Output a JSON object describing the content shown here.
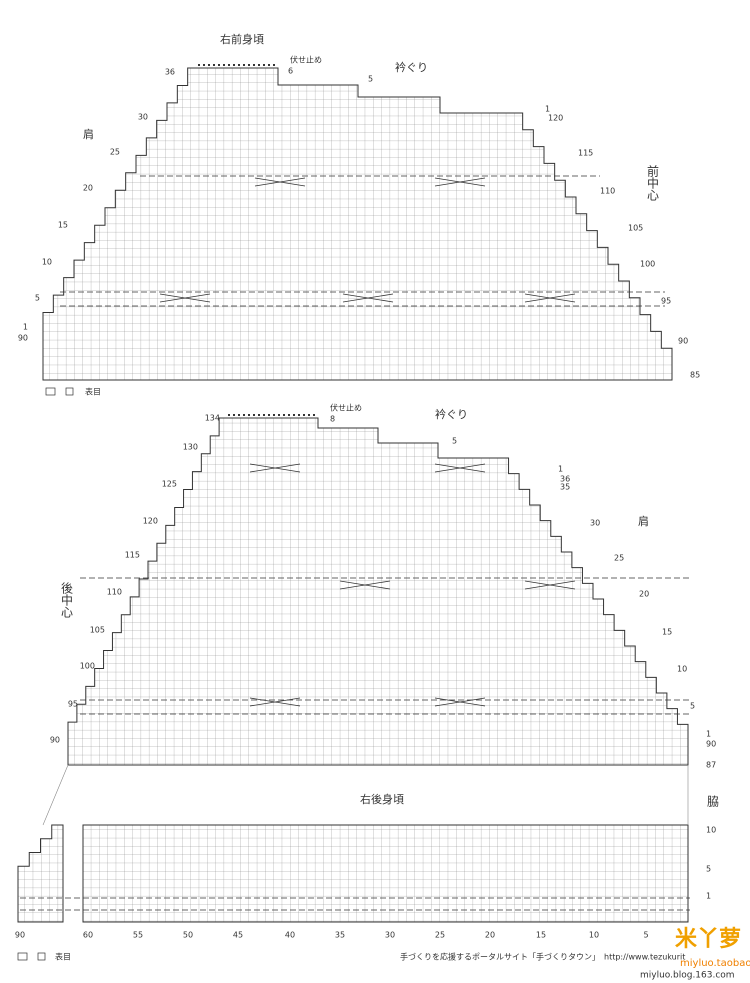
{
  "front": {
    "title": "右前身頃",
    "neckline": "衿ぐり",
    "shoulder": "肩",
    "center": "前中心",
    "bind_off": "伏せ止め",
    "left_rows": [
      "36",
      "30",
      "25",
      "20",
      "15",
      "10",
      "5",
      "1",
      "90"
    ],
    "right_rows": [
      "6",
      "5",
      "1",
      "120",
      "115",
      "110",
      "105",
      "100",
      "95",
      "90",
      "85"
    ],
    "legend": "表目"
  },
  "back": {
    "title": "右後身頃",
    "neckline": "衿ぐり",
    "shoulder": "肩",
    "center": "後中心",
    "bind_off": "伏せ止め",
    "side": "脇",
    "left_rows": [
      "134",
      "130",
      "125",
      "120",
      "115",
      "110",
      "105",
      "100",
      "95",
      "90"
    ],
    "right_rows": [
      "8",
      "5",
      "1",
      "36",
      "35",
      "30",
      "25",
      "20",
      "15",
      "10",
      "5",
      "1",
      "90",
      "87"
    ],
    "lower_right_rows": [
      "10",
      "5",
      "1"
    ],
    "stitch_numbers": [
      "90",
      "60",
      "55",
      "50",
      "45",
      "40",
      "35",
      "30",
      "25",
      "20",
      "15",
      "10",
      "5"
    ],
    "legend": "表目"
  },
  "footer": {
    "text": "手づくりを応援するポータルサイト「手づくりタウン」　http://www.tezukurit",
    "watermark": "米丫萝",
    "watermark_sub": "miyluo.taobao",
    "blog": "miyluo.blog.163.com"
  }
}
